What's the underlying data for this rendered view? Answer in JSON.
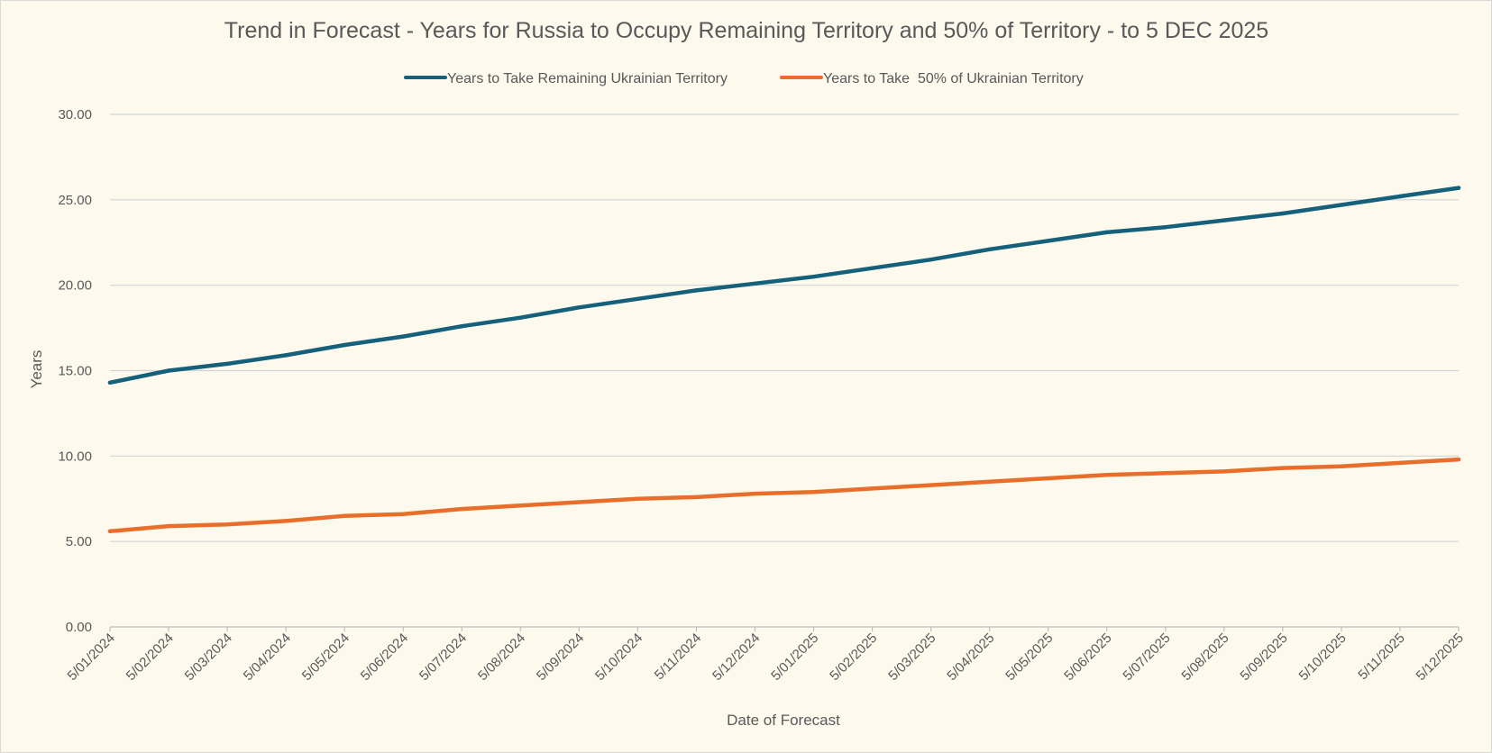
{
  "chart_data": {
    "type": "line",
    "title": "Trend in Forecast - Years for Russia to Occupy Remaining Territory and 50% of Territory - to 5 DEC 2025",
    "xlabel": "Date of Forecast",
    "ylabel": "Years",
    "ylim": [
      0,
      30
    ],
    "yticks": [
      "0.00",
      "5.00",
      "10.00",
      "15.00",
      "20.00",
      "25.00",
      "30.00"
    ],
    "grid": true,
    "legend_position": "top",
    "x": [
      "5/01/2024",
      "5/02/2024",
      "5/03/2024",
      "5/04/2024",
      "5/05/2024",
      "5/06/2024",
      "5/07/2024",
      "5/08/2024",
      "5/09/2024",
      "5/10/2024",
      "5/11/2024",
      "5/12/2024",
      "5/01/2025",
      "5/02/2025",
      "5/03/2025",
      "5/04/2025",
      "5/05/2025",
      "5/06/2025",
      "5/07/2025",
      "5/08/2025",
      "5/09/2025",
      "5/10/2025",
      "5/11/2025",
      "5/12/2025"
    ],
    "series": [
      {
        "name": "Years to Take Remaining Ukrainian Territory",
        "color": "#15607a",
        "values": [
          14.3,
          15.0,
          15.4,
          15.9,
          16.5,
          17.0,
          17.6,
          18.1,
          18.7,
          19.2,
          19.7,
          20.1,
          20.5,
          21.0,
          21.5,
          22.1,
          22.6,
          23.1,
          23.4,
          23.8,
          24.2,
          24.7,
          25.2,
          25.7
        ]
      },
      {
        "name": "Years to Take  50% of Ukrainian Territory",
        "color": "#e86f2b",
        "values": [
          5.6,
          5.9,
          6.0,
          6.2,
          6.5,
          6.6,
          6.9,
          7.1,
          7.3,
          7.5,
          7.6,
          7.8,
          7.9,
          8.1,
          8.3,
          8.5,
          8.7,
          8.9,
          9.0,
          9.1,
          9.3,
          9.4,
          9.6,
          9.8
        ]
      }
    ]
  }
}
